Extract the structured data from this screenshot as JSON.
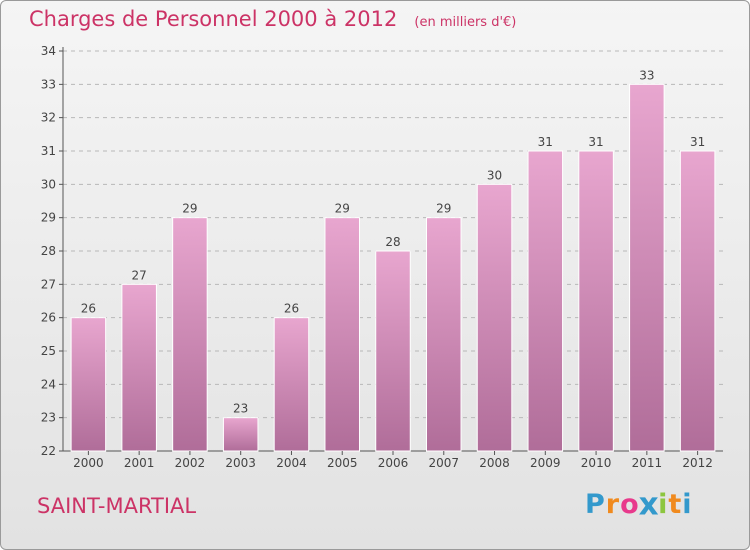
{
  "chart_data": {
    "type": "bar",
    "title": "Charges de Personnel 2000 à 2012",
    "subtitle": "(en milliers d'€)",
    "categories": [
      "2000",
      "2001",
      "2002",
      "2003",
      "2004",
      "2005",
      "2006",
      "2007",
      "2008",
      "2009",
      "2010",
      "2011",
      "2012"
    ],
    "values": [
      26,
      27,
      29,
      23,
      26,
      29,
      28,
      29,
      30,
      31,
      31,
      33,
      31
    ],
    "ylim": [
      22,
      34
    ],
    "yticks": [
      22,
      23,
      24,
      25,
      26,
      27,
      28,
      29,
      30,
      31,
      32,
      33,
      34
    ],
    "grid": true,
    "bar_color_top": "#e8a6cf",
    "bar_color_bottom": "#b06d99"
  },
  "commune": "SAINT-MARTIAL",
  "logo": {
    "letters": [
      "P",
      "r",
      "o",
      "x",
      "i",
      "t",
      "i"
    ],
    "colors": [
      "#3399cc",
      "#f08a1e",
      "#e83a8c",
      "#3399cc",
      "#8cc63f",
      "#f08a1e",
      "#3399cc"
    ]
  }
}
